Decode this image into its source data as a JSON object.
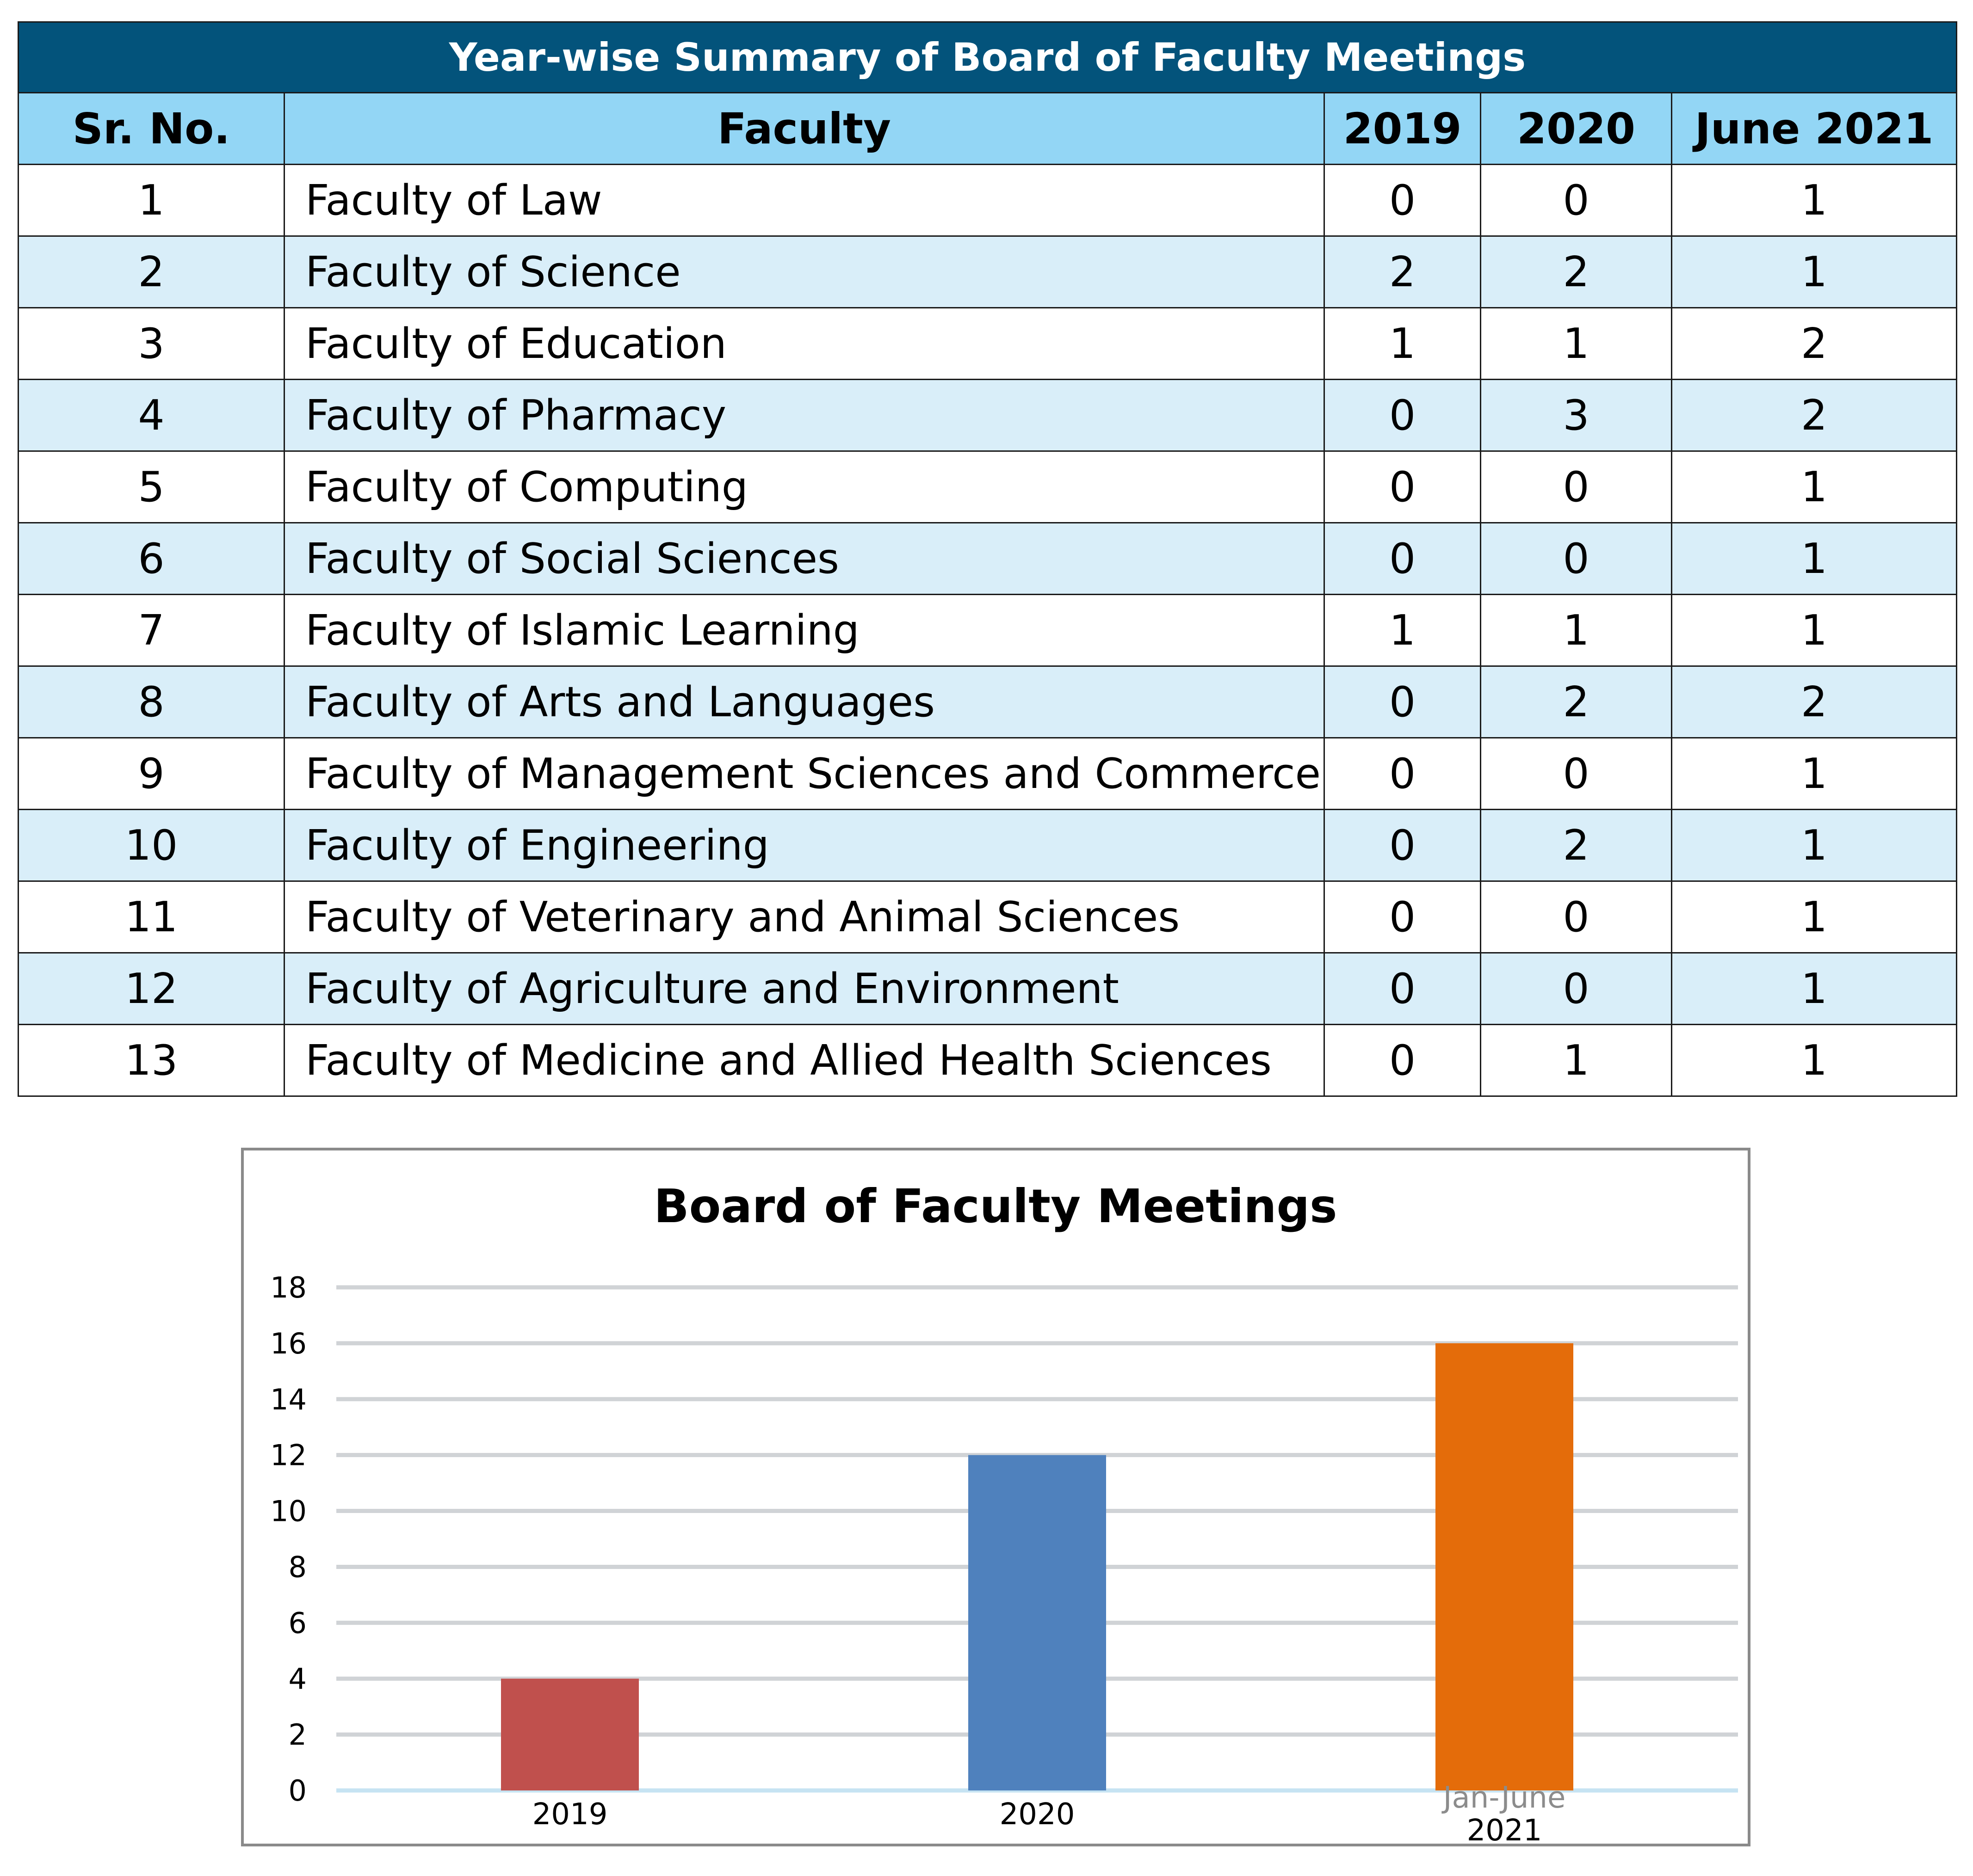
{
  "table": {
    "caption": "Year-wise Summary of Board of Faculty Meetings",
    "headers": [
      "Sr. No.",
      "Faculty",
      "2019",
      "2020",
      "June 2021"
    ],
    "rows": [
      [
        "1",
        "Faculty of Law",
        "0",
        "0",
        "1"
      ],
      [
        "2",
        "Faculty of Science",
        "2",
        "2",
        "1"
      ],
      [
        "3",
        "Faculty of Education",
        "1",
        "1",
        "2"
      ],
      [
        "4",
        "Faculty of Pharmacy",
        "0",
        "3",
        "2"
      ],
      [
        "5",
        "Faculty of Computing",
        "0",
        "0",
        "1"
      ],
      [
        "6",
        "Faculty of Social Sciences",
        "0",
        "0",
        "1"
      ],
      [
        "7",
        "Faculty of Islamic Learning",
        "1",
        "1",
        "1"
      ],
      [
        "8",
        "Faculty of Arts and Languages",
        "0",
        "2",
        "2"
      ],
      [
        "9",
        "Faculty of Management Sciences and Commerce",
        "0",
        "0",
        "1"
      ],
      [
        "10",
        "Faculty of Engineering",
        "0",
        "2",
        "1"
      ],
      [
        "11",
        "Faculty of Veterinary and Animal Sciences",
        "0",
        "0",
        "1"
      ],
      [
        "12",
        "Faculty of Agriculture and Environment",
        "0",
        "0",
        "1"
      ],
      [
        "13",
        "Faculty of Medicine and Allied Health Sciences",
        "0",
        "1",
        "1"
      ]
    ],
    "colors": {
      "caption_bg": "#03537b",
      "header_bg": "#93d6f5",
      "alt_row_bg": "#d9eef9"
    }
  },
  "chart_data": {
    "type": "bar",
    "title": "Board of Faculty Meetings",
    "categories": [
      {
        "line1": "2019",
        "line2": ""
      },
      {
        "line1": "2020",
        "line2": ""
      },
      {
        "line1": "Jan-June",
        "line2": "2021"
      }
    ],
    "values": [
      4,
      12,
      16
    ],
    "bar_colors": [
      "#c0504d",
      "#4f81bd",
      "#e46c0a"
    ],
    "ylim": [
      0,
      18
    ],
    "yticks": [
      0,
      2,
      4,
      6,
      8,
      10,
      12,
      14,
      16,
      18
    ],
    "grid": true,
    "legend": "none",
    "xlabel": "",
    "ylabel": ""
  }
}
